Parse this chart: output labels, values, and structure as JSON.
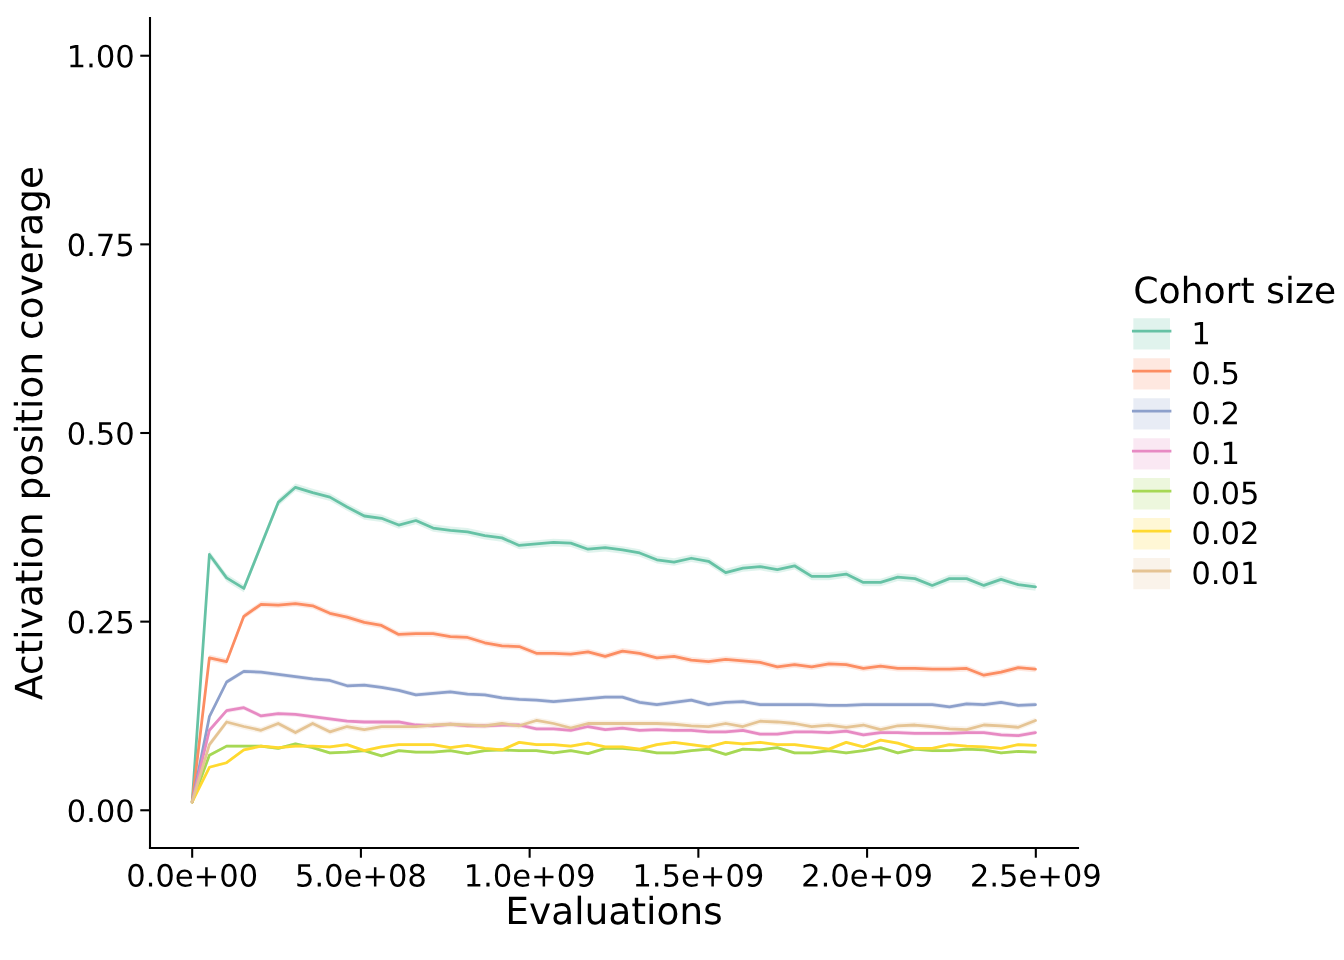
{
  "chart_data": {
    "type": "line",
    "xlabel": "Evaluations",
    "ylabel": "Activation position coverage",
    "legend_title": "Cohort size",
    "legend": "right",
    "line_style": "solid",
    "x": [
      0,
      51000000,
      102000000,
      153000000,
      204000000,
      255000000,
      306000000,
      357000000,
      408000000,
      459000000,
      510000000,
      561000000,
      612000000,
      663000000,
      714000000,
      765000000,
      816000000,
      867000000,
      918000000,
      969000000,
      1020000000,
      1071000000,
      1122000000,
      1173000000,
      1224000000,
      1275000000,
      1326000000,
      1377000000,
      1428000000,
      1479000000,
      1530000000,
      1581000000,
      1632000000,
      1683000000,
      1734000000,
      1785000000,
      1836000000,
      1887000000,
      1938000000,
      1989000000,
      2040000000,
      2091000000,
      2142000000,
      2193000000,
      2244000000,
      2295000000,
      2346000000,
      2397000000,
      2448000000,
      2499000000
    ],
    "xlim": [
      -125000000,
      2625000000
    ],
    "xticks": [
      {
        "value": 0,
        "label": "0.0e+00"
      },
      {
        "value": 500000000,
        "label": "5.0e+08"
      },
      {
        "value": 1000000000,
        "label": "1.0e+09"
      },
      {
        "value": 1500000000,
        "label": "1.5e+09"
      },
      {
        "value": 2000000000,
        "label": "2.0e+09"
      },
      {
        "value": 2500000000,
        "label": "2.5e+09"
      }
    ],
    "ylim": [
      -0.05,
      1.05
    ],
    "yticks": [
      {
        "value": 0,
        "label": "0.00"
      },
      {
        "value": 0.25,
        "label": "0.25"
      },
      {
        "value": 0.5,
        "label": "0.50"
      },
      {
        "value": 0.75,
        "label": "0.75"
      },
      {
        "value": 1,
        "label": "1.00"
      }
    ],
    "series": [
      {
        "name": "1",
        "color": "#66c2a5",
        "values": [
          0.011,
          0.339,
          0.308,
          0.294,
          0.351,
          0.408,
          0.428,
          0.421,
          0.415,
          0.402,
          0.39,
          0.387,
          0.378,
          0.384,
          0.374,
          0.371,
          0.369,
          0.364,
          0.361,
          0.351,
          0.353,
          0.355,
          0.354,
          0.346,
          0.348,
          0.345,
          0.341,
          0.332,
          0.329,
          0.334,
          0.33,
          0.315,
          0.321,
          0.323,
          0.319,
          0.324,
          0.31,
          0.31,
          0.313,
          0.302,
          0.302,
          0.309,
          0.307,
          0.298,
          0.307,
          0.307,
          0.298,
          0.306,
          0.299,
          0.296
        ],
        "lower": [
          0.009,
          0.334,
          0.303,
          0.289,
          0.346,
          0.403,
          0.423,
          0.416,
          0.41,
          0.397,
          0.385,
          0.382,
          0.373,
          0.379,
          0.369,
          0.366,
          0.364,
          0.359,
          0.356,
          0.346,
          0.348,
          0.35,
          0.349,
          0.341,
          0.343,
          0.34,
          0.336,
          0.327,
          0.324,
          0.329,
          0.325,
          0.31,
          0.316,
          0.318,
          0.314,
          0.319,
          0.305,
          0.305,
          0.308,
          0.297,
          0.297,
          0.304,
          0.302,
          0.293,
          0.302,
          0.302,
          0.293,
          0.301,
          0.294,
          0.291
        ],
        "upper": [
          0.013,
          0.344,
          0.313,
          0.299,
          0.356,
          0.413,
          0.433,
          0.426,
          0.42,
          0.407,
          0.395,
          0.392,
          0.383,
          0.389,
          0.379,
          0.376,
          0.374,
          0.369,
          0.366,
          0.356,
          0.358,
          0.36,
          0.359,
          0.351,
          0.353,
          0.35,
          0.346,
          0.337,
          0.334,
          0.339,
          0.335,
          0.32,
          0.326,
          0.328,
          0.324,
          0.329,
          0.315,
          0.315,
          0.318,
          0.307,
          0.307,
          0.314,
          0.312,
          0.303,
          0.312,
          0.312,
          0.303,
          0.311,
          0.304,
          0.301
        ]
      },
      {
        "name": "0.5",
        "color": "#fc8d62",
        "values": [
          0.011,
          0.202,
          0.197,
          0.257,
          0.273,
          0.272,
          0.274,
          0.271,
          0.261,
          0.256,
          0.249,
          0.245,
          0.233,
          0.234,
          0.234,
          0.23,
          0.229,
          0.222,
          0.218,
          0.217,
          0.208,
          0.208,
          0.207,
          0.21,
          0.204,
          0.211,
          0.208,
          0.202,
          0.204,
          0.199,
          0.197,
          0.2,
          0.198,
          0.196,
          0.19,
          0.193,
          0.19,
          0.194,
          0.193,
          0.188,
          0.191,
          0.188,
          0.188,
          0.187,
          0.187,
          0.188,
          0.179,
          0.183,
          0.189,
          0.187
        ],
        "lower": [
          0.009,
          0.198,
          0.193,
          0.253,
          0.269,
          0.268,
          0.27,
          0.267,
          0.257,
          0.252,
          0.245,
          0.241,
          0.229,
          0.23,
          0.23,
          0.226,
          0.225,
          0.218,
          0.214,
          0.213,
          0.204,
          0.204,
          0.203,
          0.206,
          0.2,
          0.207,
          0.204,
          0.198,
          0.2,
          0.195,
          0.193,
          0.196,
          0.194,
          0.192,
          0.186,
          0.189,
          0.186,
          0.19,
          0.189,
          0.184,
          0.187,
          0.184,
          0.184,
          0.183,
          0.183,
          0.184,
          0.175,
          0.179,
          0.185,
          0.183
        ],
        "upper": [
          0.013,
          0.206,
          0.201,
          0.261,
          0.277,
          0.276,
          0.278,
          0.275,
          0.265,
          0.26,
          0.253,
          0.249,
          0.237,
          0.238,
          0.238,
          0.234,
          0.233,
          0.226,
          0.222,
          0.221,
          0.212,
          0.212,
          0.211,
          0.214,
          0.208,
          0.215,
          0.212,
          0.206,
          0.208,
          0.203,
          0.201,
          0.204,
          0.202,
          0.2,
          0.194,
          0.197,
          0.194,
          0.198,
          0.197,
          0.192,
          0.195,
          0.192,
          0.192,
          0.191,
          0.191,
          0.192,
          0.183,
          0.187,
          0.193,
          0.191
        ]
      },
      {
        "name": "0.2",
        "color": "#8da0cb",
        "values": [
          0.011,
          0.124,
          0.17,
          0.184,
          0.183,
          0.18,
          0.177,
          0.174,
          0.172,
          0.165,
          0.166,
          0.163,
          0.159,
          0.153,
          0.155,
          0.157,
          0.154,
          0.153,
          0.149,
          0.147,
          0.146,
          0.144,
          0.146,
          0.148,
          0.15,
          0.15,
          0.143,
          0.14,
          0.143,
          0.146,
          0.14,
          0.143,
          0.144,
          0.14,
          0.14,
          0.14,
          0.14,
          0.139,
          0.139,
          0.14,
          0.14,
          0.14,
          0.14,
          0.14,
          0.137,
          0.141,
          0.14,
          0.143,
          0.139,
          0.14
        ],
        "lower": [
          0.009,
          0.121,
          0.167,
          0.181,
          0.18,
          0.177,
          0.174,
          0.171,
          0.169,
          0.162,
          0.163,
          0.16,
          0.156,
          0.15,
          0.152,
          0.154,
          0.151,
          0.15,
          0.146,
          0.144,
          0.143,
          0.141,
          0.143,
          0.145,
          0.147,
          0.147,
          0.14,
          0.137,
          0.14,
          0.143,
          0.137,
          0.14,
          0.141,
          0.137,
          0.137,
          0.137,
          0.137,
          0.136,
          0.136,
          0.137,
          0.137,
          0.137,
          0.137,
          0.137,
          0.134,
          0.138,
          0.137,
          0.14,
          0.136,
          0.137
        ],
        "upper": [
          0.013,
          0.127,
          0.173,
          0.187,
          0.186,
          0.183,
          0.18,
          0.177,
          0.175,
          0.168,
          0.169,
          0.166,
          0.162,
          0.156,
          0.158,
          0.16,
          0.157,
          0.156,
          0.152,
          0.15,
          0.149,
          0.147,
          0.149,
          0.151,
          0.153,
          0.153,
          0.146,
          0.143,
          0.146,
          0.149,
          0.143,
          0.146,
          0.147,
          0.143,
          0.143,
          0.143,
          0.143,
          0.142,
          0.142,
          0.143,
          0.143,
          0.143,
          0.143,
          0.143,
          0.14,
          0.144,
          0.143,
          0.146,
          0.142,
          0.143
        ]
      },
      {
        "name": "0.1",
        "color": "#e78ac3",
        "values": [
          0.011,
          0.106,
          0.132,
          0.136,
          0.125,
          0.128,
          0.127,
          0.124,
          0.121,
          0.118,
          0.117,
          0.117,
          0.117,
          0.113,
          0.112,
          0.114,
          0.112,
          0.112,
          0.113,
          0.113,
          0.108,
          0.108,
          0.106,
          0.111,
          0.107,
          0.109,
          0.106,
          0.107,
          0.106,
          0.106,
          0.104,
          0.104,
          0.106,
          0.101,
          0.101,
          0.104,
          0.104,
          0.103,
          0.105,
          0.1,
          0.103,
          0.103,
          0.102,
          0.102,
          0.102,
          0.103,
          0.103,
          0.1,
          0.099,
          0.103
        ],
        "lower": [
          0.009,
          0.103,
          0.129,
          0.133,
          0.122,
          0.125,
          0.124,
          0.121,
          0.118,
          0.115,
          0.114,
          0.114,
          0.114,
          0.11,
          0.109,
          0.111,
          0.109,
          0.109,
          0.11,
          0.11,
          0.105,
          0.105,
          0.103,
          0.108,
          0.104,
          0.106,
          0.103,
          0.104,
          0.103,
          0.103,
          0.101,
          0.101,
          0.103,
          0.098,
          0.098,
          0.101,
          0.101,
          0.1,
          0.102,
          0.097,
          0.1,
          0.1,
          0.099,
          0.099,
          0.099,
          0.1,
          0.1,
          0.097,
          0.096,
          0.1
        ],
        "upper": [
          0.013,
          0.109,
          0.135,
          0.139,
          0.128,
          0.131,
          0.13,
          0.127,
          0.124,
          0.121,
          0.12,
          0.12,
          0.12,
          0.116,
          0.115,
          0.117,
          0.115,
          0.115,
          0.116,
          0.116,
          0.111,
          0.111,
          0.109,
          0.114,
          0.11,
          0.112,
          0.109,
          0.11,
          0.109,
          0.109,
          0.107,
          0.107,
          0.109,
          0.104,
          0.104,
          0.107,
          0.107,
          0.106,
          0.108,
          0.103,
          0.106,
          0.106,
          0.105,
          0.105,
          0.105,
          0.106,
          0.106,
          0.103,
          0.102,
          0.106
        ]
      },
      {
        "name": "0.05",
        "color": "#a6d854",
        "values": [
          0.011,
          0.073,
          0.085,
          0.085,
          0.085,
          0.082,
          0.088,
          0.083,
          0.076,
          0.077,
          0.079,
          0.072,
          0.079,
          0.077,
          0.077,
          0.079,
          0.075,
          0.079,
          0.08,
          0.079,
          0.079,
          0.076,
          0.079,
          0.075,
          0.082,
          0.082,
          0.08,
          0.076,
          0.076,
          0.079,
          0.081,
          0.074,
          0.081,
          0.08,
          0.083,
          0.076,
          0.076,
          0.079,
          0.076,
          0.079,
          0.083,
          0.076,
          0.081,
          0.079,
          0.079,
          0.081,
          0.08,
          0.076,
          0.078,
          0.077
        ],
        "lower": [
          0.009,
          0.071,
          0.083,
          0.083,
          0.083,
          0.08,
          0.086,
          0.081,
          0.074,
          0.075,
          0.077,
          0.07,
          0.077,
          0.075,
          0.075,
          0.077,
          0.073,
          0.077,
          0.078,
          0.077,
          0.077,
          0.074,
          0.077,
          0.073,
          0.08,
          0.08,
          0.078,
          0.074,
          0.074,
          0.077,
          0.079,
          0.072,
          0.079,
          0.078,
          0.081,
          0.074,
          0.074,
          0.077,
          0.074,
          0.077,
          0.081,
          0.074,
          0.079,
          0.077,
          0.077,
          0.079,
          0.078,
          0.074,
          0.076,
          0.075
        ],
        "upper": [
          0.013,
          0.075,
          0.087,
          0.087,
          0.087,
          0.084,
          0.09,
          0.085,
          0.078,
          0.079,
          0.081,
          0.074,
          0.081,
          0.079,
          0.079,
          0.081,
          0.077,
          0.081,
          0.082,
          0.081,
          0.081,
          0.078,
          0.081,
          0.077,
          0.084,
          0.084,
          0.082,
          0.078,
          0.078,
          0.081,
          0.083,
          0.076,
          0.083,
          0.082,
          0.085,
          0.078,
          0.078,
          0.081,
          0.078,
          0.081,
          0.085,
          0.078,
          0.083,
          0.081,
          0.081,
          0.083,
          0.082,
          0.078,
          0.08,
          0.079
        ]
      },
      {
        "name": "0.02",
        "color": "#ffd92f",
        "values": [
          0.011,
          0.057,
          0.063,
          0.08,
          0.085,
          0.083,
          0.085,
          0.085,
          0.084,
          0.087,
          0.079,
          0.084,
          0.087,
          0.087,
          0.087,
          0.083,
          0.086,
          0.082,
          0.08,
          0.09,
          0.087,
          0.087,
          0.085,
          0.089,
          0.084,
          0.084,
          0.081,
          0.087,
          0.09,
          0.087,
          0.084,
          0.09,
          0.088,
          0.09,
          0.087,
          0.087,
          0.084,
          0.081,
          0.09,
          0.084,
          0.093,
          0.089,
          0.082,
          0.082,
          0.087,
          0.085,
          0.084,
          0.082,
          0.087,
          0.086
        ],
        "lower": [
          0.009,
          0.055,
          0.061,
          0.078,
          0.083,
          0.081,
          0.083,
          0.083,
          0.082,
          0.085,
          0.077,
          0.082,
          0.085,
          0.085,
          0.085,
          0.081,
          0.084,
          0.08,
          0.078,
          0.088,
          0.085,
          0.085,
          0.083,
          0.087,
          0.082,
          0.082,
          0.079,
          0.085,
          0.088,
          0.085,
          0.082,
          0.088,
          0.086,
          0.088,
          0.085,
          0.085,
          0.082,
          0.079,
          0.088,
          0.082,
          0.091,
          0.087,
          0.08,
          0.08,
          0.085,
          0.083,
          0.082,
          0.08,
          0.085,
          0.084
        ],
        "upper": [
          0.013,
          0.059,
          0.065,
          0.082,
          0.087,
          0.085,
          0.087,
          0.087,
          0.086,
          0.089,
          0.081,
          0.086,
          0.089,
          0.089,
          0.089,
          0.085,
          0.088,
          0.084,
          0.082,
          0.092,
          0.089,
          0.089,
          0.087,
          0.091,
          0.086,
          0.086,
          0.083,
          0.089,
          0.092,
          0.089,
          0.086,
          0.092,
          0.09,
          0.092,
          0.089,
          0.089,
          0.086,
          0.083,
          0.092,
          0.086,
          0.095,
          0.091,
          0.084,
          0.084,
          0.089,
          0.087,
          0.086,
          0.084,
          0.089,
          0.088
        ]
      },
      {
        "name": "0.01",
        "color": "#e5c494",
        "values": [
          0.011,
          0.087,
          0.117,
          0.111,
          0.106,
          0.115,
          0.103,
          0.115,
          0.104,
          0.111,
          0.107,
          0.111,
          0.111,
          0.111,
          0.113,
          0.114,
          0.113,
          0.112,
          0.115,
          0.112,
          0.119,
          0.115,
          0.109,
          0.115,
          0.115,
          0.115,
          0.115,
          0.115,
          0.114,
          0.112,
          0.111,
          0.115,
          0.111,
          0.118,
          0.117,
          0.115,
          0.111,
          0.113,
          0.11,
          0.113,
          0.107,
          0.112,
          0.113,
          0.111,
          0.108,
          0.107,
          0.113,
          0.112,
          0.11,
          0.119
        ],
        "lower": [
          0.009,
          0.083,
          0.113,
          0.107,
          0.102,
          0.111,
          0.099,
          0.111,
          0.1,
          0.107,
          0.103,
          0.107,
          0.107,
          0.107,
          0.109,
          0.11,
          0.109,
          0.108,
          0.111,
          0.108,
          0.115,
          0.111,
          0.105,
          0.111,
          0.111,
          0.111,
          0.111,
          0.111,
          0.11,
          0.108,
          0.107,
          0.111,
          0.107,
          0.114,
          0.113,
          0.111,
          0.107,
          0.109,
          0.106,
          0.109,
          0.103,
          0.108,
          0.109,
          0.107,
          0.104,
          0.103,
          0.109,
          0.108,
          0.106,
          0.115
        ],
        "upper": [
          0.013,
          0.091,
          0.121,
          0.115,
          0.11,
          0.119,
          0.107,
          0.119,
          0.108,
          0.115,
          0.111,
          0.115,
          0.115,
          0.115,
          0.117,
          0.118,
          0.117,
          0.116,
          0.119,
          0.116,
          0.123,
          0.119,
          0.113,
          0.119,
          0.119,
          0.119,
          0.119,
          0.119,
          0.118,
          0.116,
          0.115,
          0.119,
          0.115,
          0.122,
          0.121,
          0.119,
          0.115,
          0.117,
          0.114,
          0.117,
          0.111,
          0.116,
          0.117,
          0.115,
          0.112,
          0.111,
          0.117,
          0.116,
          0.114,
          0.123
        ]
      }
    ]
  }
}
